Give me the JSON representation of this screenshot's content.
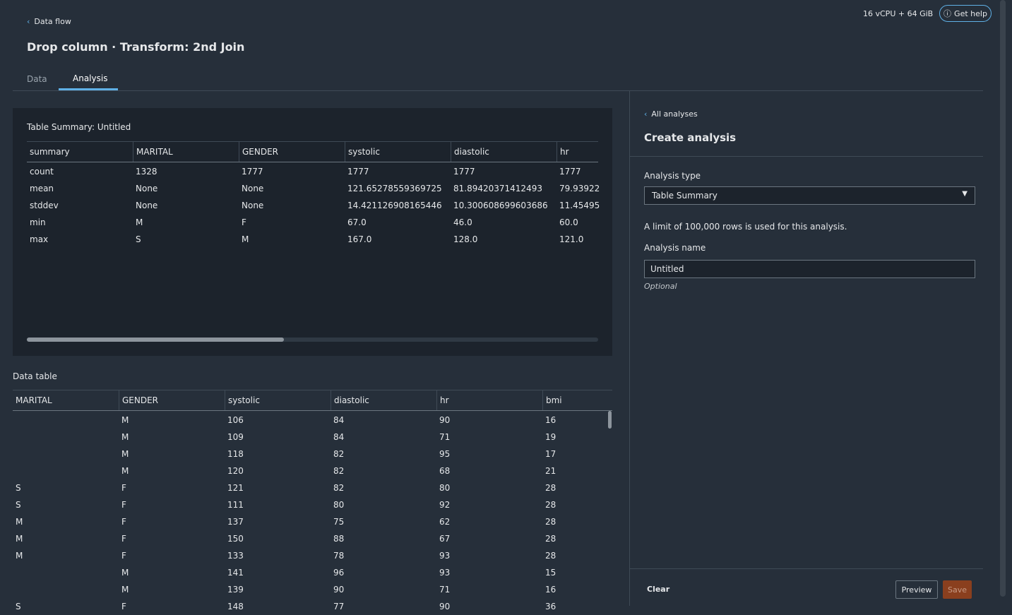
{
  "header": {
    "back_link": "Data flow",
    "title": "Drop column · Transform: 2nd Join",
    "resources": "16 vCPU + 64 GiB",
    "help_button": "Get help"
  },
  "tabs": [
    "Data",
    "Analysis"
  ],
  "summary": {
    "title": "Table Summary: Untitled",
    "columns": [
      "summary",
      "MARITAL",
      "GENDER",
      "systolic",
      "diastolic",
      "hr"
    ],
    "rows": [
      [
        "count",
        "1328",
        "1777",
        "1777",
        "1777",
        "1777"
      ],
      [
        "mean",
        "None",
        "None",
        "121.65278559369725",
        "81.89420371412493",
        "79.93922"
      ],
      [
        "stddev",
        "None",
        "None",
        "14.421126908165446",
        "10.300608699603686",
        "11.45495"
      ],
      [
        "min",
        "M",
        "F",
        "67.0",
        "46.0",
        "60.0"
      ],
      [
        "max",
        "S",
        "M",
        "167.0",
        "128.0",
        "121.0"
      ]
    ]
  },
  "data_table": {
    "title": "Data table",
    "columns": [
      "MARITAL",
      "GENDER",
      "systolic",
      "diastolic",
      "hr",
      "bmi"
    ],
    "rows": [
      [
        null,
        "M",
        106,
        84,
        90,
        16
      ],
      [
        null,
        "M",
        109,
        84,
        71,
        19
      ],
      [
        null,
        "M",
        118,
        82,
        95,
        17
      ],
      [
        null,
        "M",
        120,
        82,
        68,
        21
      ],
      [
        "S",
        "F",
        121,
        82,
        80,
        28
      ],
      [
        "S",
        "F",
        111,
        80,
        92,
        28
      ],
      [
        "M",
        "F",
        137,
        75,
        62,
        28
      ],
      [
        "M",
        "F",
        150,
        88,
        67,
        28
      ],
      [
        "M",
        "F",
        133,
        78,
        93,
        28
      ],
      [
        null,
        "M",
        141,
        96,
        93,
        15
      ],
      [
        null,
        "M",
        139,
        90,
        71,
        16
      ],
      [
        "S",
        "F",
        148,
        77,
        90,
        36
      ]
    ]
  },
  "panel": {
    "back_link": "All analyses",
    "title": "Create analysis",
    "type_label": "Analysis type",
    "type_value": "Table Summary",
    "limit_note": "A limit of 100,000 rows is used for this analysis.",
    "name_label": "Analysis name",
    "name_value": "Untitled",
    "name_hint": "Optional",
    "clear_button": "Clear",
    "preview_button": "Preview",
    "save_button": "Save"
  }
}
